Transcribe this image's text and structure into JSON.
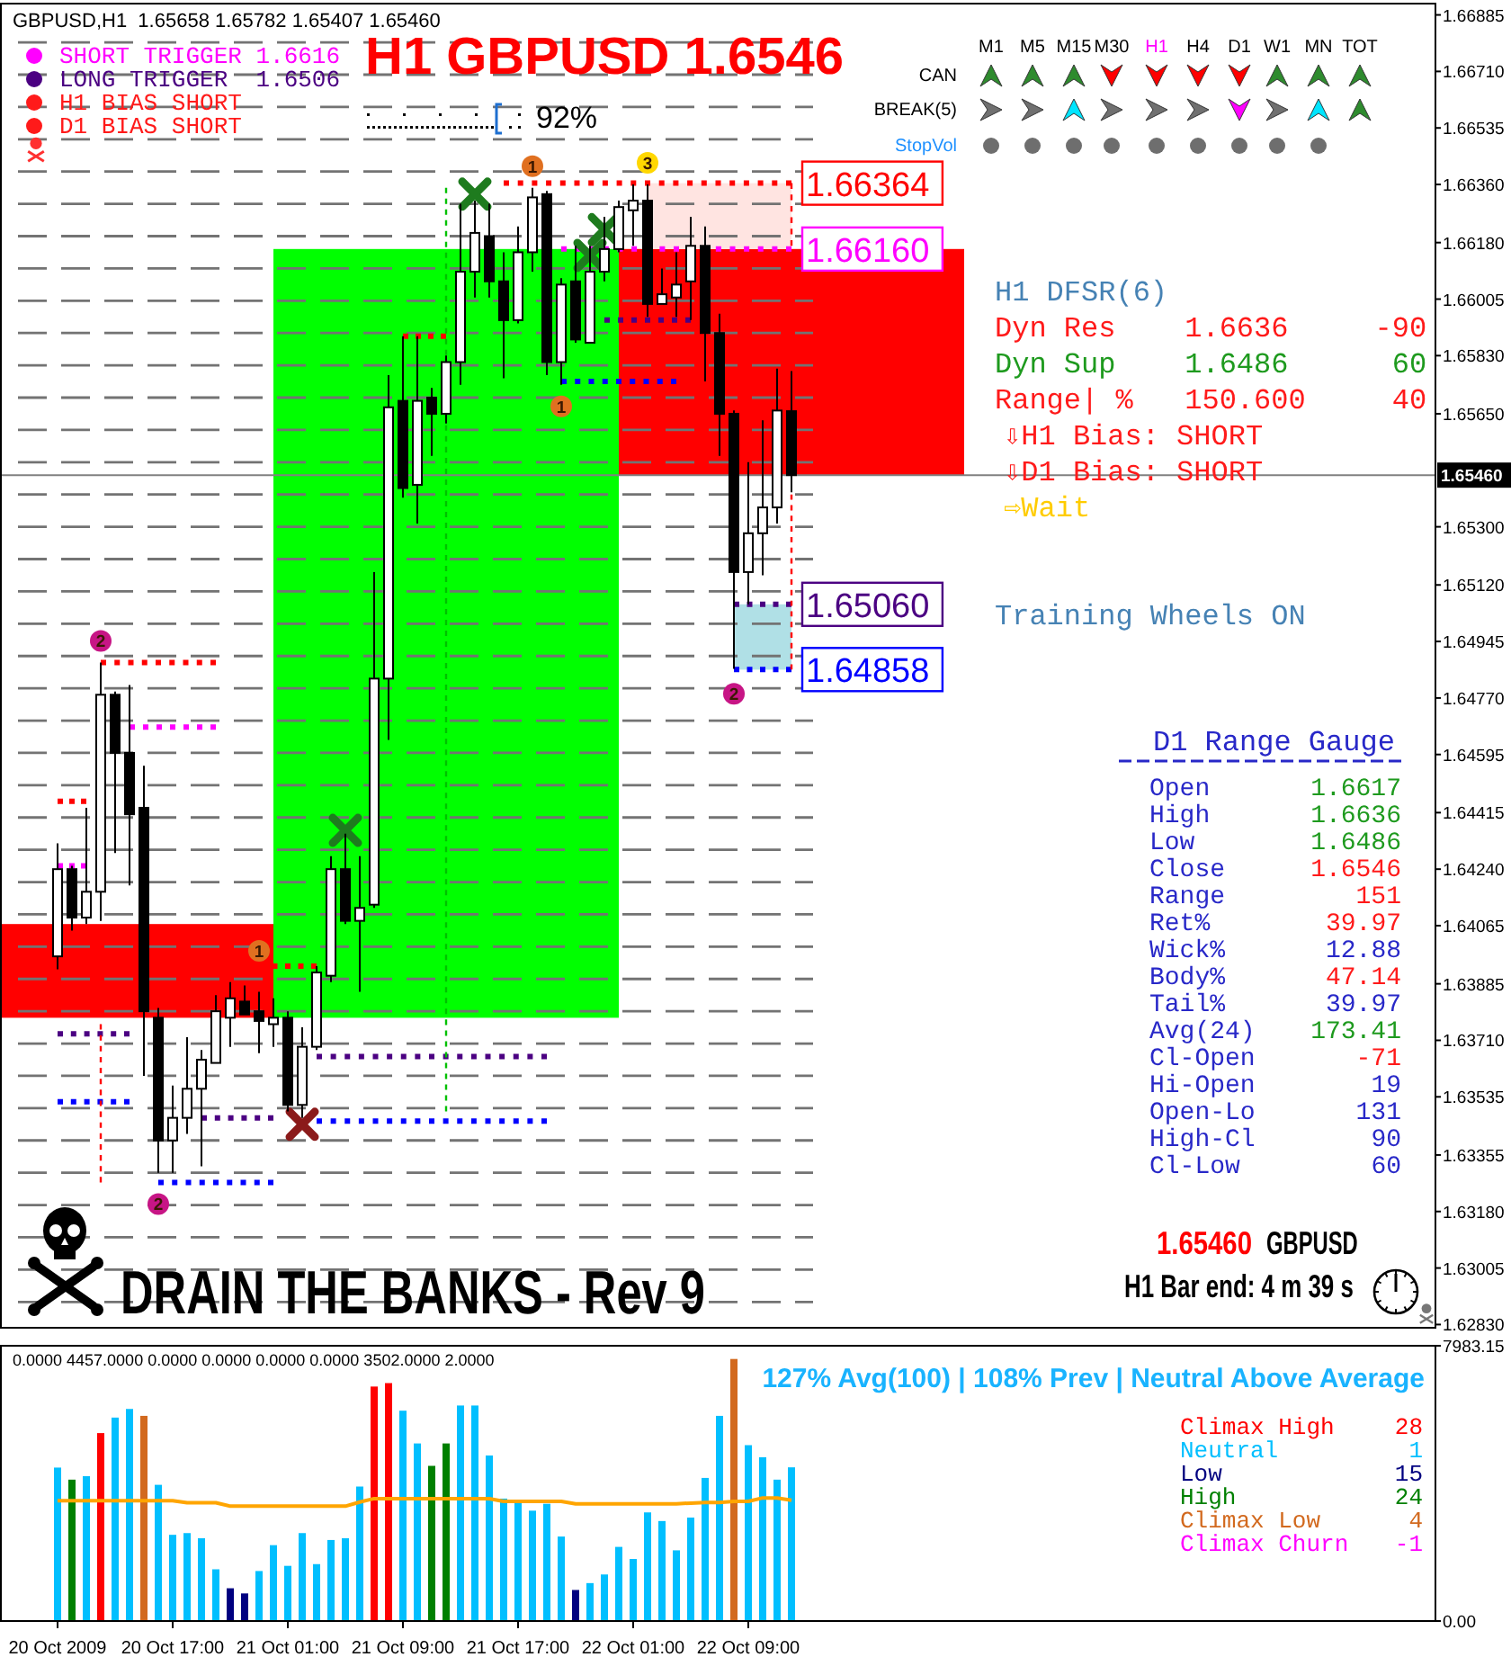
{
  "chart_data": [
    {
      "type": "candlestick",
      "title": "H1 GBPUSD 1.6546",
      "x": [
        "2009-10-20T09:00",
        "2009-10-20T10:00",
        "2009-10-20T11:00",
        "2009-10-20T12:00",
        "2009-10-20T13:00",
        "2009-10-20T14:00",
        "2009-10-20T15:00",
        "2009-10-20T16:00",
        "2009-10-20T17:00",
        "2009-10-20T18:00",
        "2009-10-20T19:00",
        "2009-10-20T20:00",
        "2009-10-20T21:00",
        "2009-10-20T22:00",
        "2009-10-20T23:00",
        "2009-10-21T00:00",
        "2009-10-21T01:00",
        "2009-10-21T02:00",
        "2009-10-21T03:00",
        "2009-10-21T04:00",
        "2009-10-21T05:00",
        "2009-10-21T06:00",
        "2009-10-21T07:00",
        "2009-10-21T08:00",
        "2009-10-21T09:00",
        "2009-10-21T10:00",
        "2009-10-21T11:00",
        "2009-10-21T12:00",
        "2009-10-21T13:00",
        "2009-10-21T14:00",
        "2009-10-21T15:00",
        "2009-10-21T16:00",
        "2009-10-21T17:00",
        "2009-10-21T18:00",
        "2009-10-21T19:00",
        "2009-10-21T20:00",
        "2009-10-21T21:00",
        "2009-10-21T22:00",
        "2009-10-21T23:00",
        "2009-10-22T00:00",
        "2009-10-22T01:00",
        "2009-10-22T02:00",
        "2009-10-22T03:00",
        "2009-10-22T04:00",
        "2009-10-22T05:00",
        "2009-10-22T06:00",
        "2009-10-22T07:00",
        "2009-10-22T08:00",
        "2009-10-22T09:00",
        "2009-10-22T10:00",
        "2009-10-22T11:00",
        "2009-10-22T12:00"
      ],
      "ohlc": [
        [
          1.6397,
          1.6432,
          1.6393,
          1.6424
        ],
        [
          1.6424,
          1.6425,
          1.6405,
          1.6409
        ],
        [
          1.6409,
          1.6443,
          1.6407,
          1.6417
        ],
        [
          1.6417,
          1.6488,
          1.6408,
          1.6478
        ],
        [
          1.6478,
          1.6479,
          1.6429,
          1.646
        ],
        [
          1.646,
          1.6481,
          1.6419,
          1.6441
        ],
        [
          1.6443,
          1.6456,
          1.636,
          1.638
        ],
        [
          1.6378,
          1.6381,
          1.633,
          1.634
        ],
        [
          1.634,
          1.6357,
          1.633,
          1.6347
        ],
        [
          1.6347,
          1.6372,
          1.6342,
          1.6356
        ],
        [
          1.6356,
          1.6368,
          1.6332,
          1.6365
        ],
        [
          1.6364,
          1.6385,
          1.6364,
          1.638
        ],
        [
          1.6378,
          1.6389,
          1.6369,
          1.6384
        ],
        [
          1.6383,
          1.6388,
          1.6379,
          1.6379
        ],
        [
          1.638,
          1.6386,
          1.6367,
          1.6377
        ],
        [
          1.6376,
          1.6384,
          1.6369,
          1.6378
        ],
        [
          1.6378,
          1.638,
          1.6349,
          1.6351
        ],
        [
          1.6351,
          1.6375,
          1.6347,
          1.6369
        ],
        [
          1.6369,
          1.6394,
          1.6368,
          1.6392
        ],
        [
          1.6391,
          1.6428,
          1.6389,
          1.6424
        ],
        [
          1.6424,
          1.6435,
          1.6407,
          1.6408
        ],
        [
          1.6408,
          1.6428,
          1.6386,
          1.6412
        ],
        [
          1.6413,
          1.6516,
          1.6412,
          1.6483
        ],
        [
          1.6483,
          1.6577,
          1.6464,
          1.6567
        ],
        [
          1.6569,
          1.6589,
          1.6539,
          1.6542
        ],
        [
          1.6543,
          1.6589,
          1.6531,
          1.6569
        ],
        [
          1.657,
          1.6573,
          1.6552,
          1.6565
        ],
        [
          1.6565,
          1.6583,
          1.6562,
          1.6581
        ],
        [
          1.6581,
          1.663,
          1.6574,
          1.6609
        ],
        [
          1.6609,
          1.6631,
          1.6601,
          1.6621
        ],
        [
          1.662,
          1.663,
          1.6601,
          1.6606
        ],
        [
          1.6606,
          1.6615,
          1.6576,
          1.6594
        ],
        [
          1.6594,
          1.6623,
          1.6593,
          1.6615
        ],
        [
          1.6615,
          1.6635,
          1.6609,
          1.6632
        ],
        [
          1.6633,
          1.6634,
          1.6577,
          1.6581
        ],
        [
          1.6581,
          1.6607,
          1.6574,
          1.6605
        ],
        [
          1.6606,
          1.6617,
          1.6587,
          1.6588
        ],
        [
          1.6587,
          1.6617,
          1.6587,
          1.6609
        ],
        [
          1.6609,
          1.6626,
          1.6606,
          1.6616
        ],
        [
          1.6616,
          1.6631,
          1.6615,
          1.6629
        ],
        [
          1.6628,
          1.6636,
          1.6617,
          1.6631
        ],
        [
          1.6631,
          1.6636,
          1.6595,
          1.6599
        ],
        [
          1.6599,
          1.661,
          1.6599,
          1.6602
        ],
        [
          1.6601,
          1.6615,
          1.6595,
          1.6605
        ],
        [
          1.6606,
          1.6626,
          1.6594,
          1.6617
        ],
        [
          1.6617,
          1.6623,
          1.6575,
          1.659
        ],
        [
          1.659,
          1.6596,
          1.6552,
          1.6565
        ],
        [
          1.6565,
          1.6566,
          1.6486,
          1.6516
        ],
        [
          1.6516,
          1.655,
          1.6506,
          1.6528
        ],
        [
          1.6528,
          1.6563,
          1.6515,
          1.6536
        ],
        [
          1.6536,
          1.6579,
          1.6531,
          1.6566
        ],
        [
          1.65658,
          1.65782,
          1.65407,
          1.6546
        ]
      ],
      "xlim": [
        "2009-10-20T05:00",
        "2009-10-24T08:45"
      ],
      "ylim": [
        1.6282,
        1.6692
      ],
      "yticks": [
        1.66885,
        {
          "value": 1.6671,
          "label": "1.66710"
        },
        1.66535,
        {
          "value": 1.6636,
          "label": "1.66360"
        },
        {
          "value": 1.6618,
          "label": "1.66180"
        },
        1.66005,
        {
          "value": 1.6583,
          "label": "1.65830"
        },
        {
          "value": 1.6565,
          "label": "1.65650"
        },
        {
          "value": 1.653,
          "label": "1.65300"
        },
        {
          "value": 1.6512,
          "label": "1.65120"
        },
        1.64945,
        {
          "value": 1.6477,
          "label": "1.64770"
        },
        1.64595,
        1.64415,
        {
          "value": 1.6424,
          "label": "1.64240"
        },
        1.64065,
        1.63885,
        {
          "value": 1.6371,
          "label": "1.63710"
        },
        1.63535,
        1.63355,
        {
          "value": 1.6318,
          "label": "1.63180"
        },
        1.63005,
        {
          "value": 1.6283,
          "label": "1.62830"
        }
      ],
      "tick_labels": "y",
      "line_style": "dotted",
      "series": [
        {
          "type": "line",
          "color": "#ff0000",
          "x": [
            "2009-10-20T12:00",
            "2009-10-20T20:00"
          ],
          "values": [
            1.6488,
            1.6488
          ]
        },
        {
          "type": "line",
          "color": "#ff00ff",
          "x": [
            "2009-10-20T14:00",
            "2009-10-20T20:00"
          ],
          "values": [
            1.6468,
            1.6468
          ]
        },
        {
          "type": "line",
          "color": "#ff0000",
          "x": [
            "2009-10-20T09:00",
            "2009-10-20T11:00"
          ],
          "values": [
            1.6445,
            1.6445
          ]
        },
        {
          "type": "line",
          "color": "#ff00ff",
          "x": [
            "2009-10-20T09:00",
            "2009-10-20T11:00"
          ],
          "values": [
            1.6425,
            1.6425
          ]
        },
        {
          "type": "line",
          "color": "#4b0082",
          "x": [
            "2009-10-20T09:00",
            "2009-10-20T14:00"
          ],
          "values": [
            1.6373,
            1.6373
          ]
        },
        {
          "type": "line",
          "color": "#0000ff",
          "x": [
            "2009-10-20T09:00",
            "2009-10-20T14:00"
          ],
          "values": [
            1.6352,
            1.6352
          ]
        },
        {
          "type": "line",
          "color": "#0000ff",
          "x": [
            "2009-10-20T16:00",
            "2009-10-21T00:00"
          ],
          "values": [
            1.6327,
            1.6327
          ]
        },
        {
          "type": "line",
          "color": "#4b0082",
          "x": [
            "2009-10-20T19:00",
            "2009-10-21T00:00"
          ],
          "values": [
            1.6347,
            1.6347
          ]
        },
        {
          "type": "line",
          "color": "#ff0000",
          "x": [
            "2009-10-20T23:00",
            "2009-10-21T03:00"
          ],
          "values": [
            1.6394,
            1.6394
          ]
        },
        {
          "type": "line",
          "color": "#4b0082",
          "x": [
            "2009-10-21T03:00",
            "2009-10-21T19:00"
          ],
          "values": [
            1.6366,
            1.6366
          ]
        },
        {
          "type": "line",
          "color": "#0000ff",
          "x": [
            "2009-10-21T03:00",
            "2009-10-21T19:00"
          ],
          "values": [
            1.6346,
            1.6346
          ]
        },
        {
          "type": "line",
          "color": "#ff0000",
          "x": [
            "2009-10-21T09:00",
            "2009-10-21T12:00"
          ],
          "values": [
            1.6589,
            1.6589
          ]
        },
        {
          "type": "line",
          "color": "#4b0082",
          "x": [
            "2009-10-21T23:00",
            "2009-10-22T05:00"
          ],
          "values": [
            1.6594,
            1.6594
          ]
        },
        {
          "type": "line",
          "color": "#0000ff",
          "x": [
            "2009-10-21T20:00",
            "2009-10-22T04:00"
          ],
          "values": [
            1.6575,
            1.6575
          ]
        },
        {
          "type": "line",
          "color": "#ff0000",
          "x": [
            "2009-10-21T16:00",
            "2009-10-22T12:00"
          ],
          "values": [
            1.66364,
            1.66364
          ]
        },
        {
          "type": "line",
          "color": "#ff00ff",
          "x": [
            "2009-10-21T20:00",
            "2009-10-22T12:00"
          ],
          "values": [
            1.6616,
            1.6616
          ]
        },
        {
          "type": "line",
          "color": "#4b0082",
          "x": [
            "2009-10-22T08:00",
            "2009-10-22T12:00"
          ],
          "values": [
            1.6506,
            1.6506
          ]
        },
        {
          "type": "line",
          "color": "#0000ff",
          "x": [
            "2009-10-22T08:00",
            "2009-10-22T12:00"
          ],
          "values": [
            1.64858,
            1.64858
          ]
        },
        {
          "type": "line",
          "color": "#00c000",
          "line_style": "dashed",
          "x": [
            "2009-10-21T12:00",
            "2009-10-21T12:00"
          ],
          "values": [
            1.6635,
            1.6349
          ]
        },
        {
          "type": "line",
          "color": "#ff0000",
          "line_style": "dashed",
          "x": [
            "2009-10-20T12:00",
            "2009-10-20T12:00"
          ],
          "values": [
            1.6376,
            1.6327
          ]
        },
        {
          "type": "line",
          "color": "#ff0000",
          "line_style": "dashed",
          "x": [
            "2009-10-22T12:00",
            "2009-10-22T12:00"
          ],
          "values": [
            1.66364,
            1.6617
          ]
        },
        {
          "type": "line",
          "color": "#ff0000",
          "line_style": "dashed",
          "x": [
            "2009-10-22T12:00",
            "2009-10-22T12:00"
          ],
          "values": [
            1.654,
            1.64858
          ]
        },
        {
          "type": "scatter",
          "marker": "cross",
          "color": "#1e7b1e",
          "x": [
            "2009-10-21T05:00",
            "2009-10-21T14:00",
            "2009-10-21T22:00",
            "2009-10-21T23:00"
          ],
          "values": [
            1.6436,
            1.6633,
            1.6614,
            1.6622
          ]
        },
        {
          "type": "scatter",
          "marker": "cross",
          "color": "#8b1a1a",
          "x": [
            "2009-10-21T02:00"
          ],
          "values": [
            1.6345
          ]
        }
      ],
      "ref_lines": [
        {
          "axis": "y",
          "value": 1.6546,
          "label": "1.65460",
          "color": "#808080",
          "line_style": "solid"
        },
        {
          "axis": "y",
          "value": 1.629,
          "color": "#737373",
          "line_style": "dashed"
        },
        {
          "axis": "y",
          "value": 1.63,
          "color": "#737373",
          "line_style": "dashed"
        },
        {
          "axis": "y",
          "value": 1.631,
          "color": "#737373",
          "line_style": "dashed"
        },
        {
          "axis": "y",
          "value": 1.632,
          "color": "#737373",
          "line_style": "dashed"
        },
        {
          "axis": "y",
          "value": 1.633,
          "color": "#737373",
          "line_style": "dashed"
        },
        {
          "axis": "y",
          "value": 1.634,
          "color": "#737373",
          "line_style": "dashed"
        },
        {
          "axis": "y",
          "value": 1.635,
          "color": "#737373",
          "line_style": "dashed"
        },
        {
          "axis": "y",
          "value": 1.636,
          "color": "#737373",
          "line_style": "dashed"
        },
        {
          "axis": "y",
          "value": 1.637,
          "color": "#737373",
          "line_style": "dashed"
        },
        {
          "axis": "y",
          "value": 1.638,
          "color": "#737373",
          "line_style": "dashed"
        },
        {
          "axis": "y",
          "value": 1.639,
          "color": "#737373",
          "line_style": "dashed"
        },
        {
          "axis": "y",
          "value": 1.64,
          "color": "#737373",
          "line_style": "dashed"
        },
        {
          "axis": "y",
          "value": 1.641,
          "color": "#737373",
          "line_style": "dashed"
        },
        {
          "axis": "y",
          "value": 1.642,
          "color": "#737373",
          "line_style": "dashed"
        },
        {
          "axis": "y",
          "value": 1.643,
          "color": "#737373",
          "line_style": "dashed"
        },
        {
          "axis": "y",
          "value": 1.644,
          "color": "#737373",
          "line_style": "dashed"
        },
        {
          "axis": "y",
          "value": 1.645,
          "color": "#737373",
          "line_style": "dashed"
        },
        {
          "axis": "y",
          "value": 1.646,
          "color": "#737373",
          "line_style": "dashed"
        },
        {
          "axis": "y",
          "value": 1.647,
          "color": "#737373",
          "line_style": "dashed"
        },
        {
          "axis": "y",
          "value": 1.648,
          "color": "#737373",
          "line_style": "dashed"
        },
        {
          "axis": "y",
          "value": 1.649,
          "color": "#737373",
          "line_style": "dashed"
        },
        {
          "axis": "y",
          "value": 1.65,
          "color": "#737373",
          "line_style": "dashed"
        },
        {
          "axis": "y",
          "value": 1.651,
          "color": "#737373",
          "line_style": "dashed"
        },
        {
          "axis": "y",
          "value": 1.652,
          "color": "#737373",
          "line_style": "dashed"
        },
        {
          "axis": "y",
          "value": 1.653,
          "color": "#737373",
          "line_style": "dashed"
        },
        {
          "axis": "y",
          "value": 1.654,
          "color": "#737373",
          "line_style": "dashed"
        },
        {
          "axis": "y",
          "value": 1.655,
          "color": "#737373",
          "line_style": "dashed"
        },
        {
          "axis": "y",
          "value": 1.656,
          "color": "#737373",
          "line_style": "dashed"
        },
        {
          "axis": "y",
          "value": 1.657,
          "color": "#737373",
          "line_style": "dashed"
        },
        {
          "axis": "y",
          "value": 1.658,
          "color": "#737373",
          "line_style": "dashed"
        },
        {
          "axis": "y",
          "value": 1.659,
          "color": "#737373",
          "line_style": "dashed"
        },
        {
          "axis": "y",
          "value": 1.66,
          "color": "#737373",
          "line_style": "dashed"
        },
        {
          "axis": "y",
          "value": 1.661,
          "color": "#737373",
          "line_style": "dashed"
        },
        {
          "axis": "y",
          "value": 1.662,
          "color": "#737373",
          "line_style": "dashed"
        },
        {
          "axis": "y",
          "value": 1.663,
          "color": "#737373",
          "line_style": "dashed"
        },
        {
          "axis": "y",
          "value": 1.664,
          "color": "#737373",
          "line_style": "dashed"
        },
        {
          "axis": "y",
          "value": 1.665,
          "color": "#737373",
          "line_style": "dashed"
        },
        {
          "axis": "y",
          "value": 1.666,
          "color": "#737373",
          "line_style": "dashed"
        },
        {
          "axis": "y",
          "value": 1.667,
          "color": "#737373",
          "line_style": "dashed"
        },
        {
          "axis": "y",
          "value": 1.668,
          "color": "#737373",
          "line_style": "dashed"
        }
      ],
      "annotations": [
        "GBPUSD,H1  1.65658 1.65782 1.65407 1.65460",
        "SHORT TRIGGER 1.6616",
        "LONG TRIGGER  1.6506",
        "H1 BIAS SHORT",
        "D1 BIAS SHORT",
        "92%",
        "M1",
        "M5",
        "M15",
        "M30",
        "H1",
        "H4",
        "D1",
        "W1",
        "MN",
        "TOT",
        "CAN",
        "BREAK(5)",
        "StopVol",
        "H1 DFSR(6)",
        "Dyn Res    1.6636     -90",
        "Dyn Sup    1.6486      60",
        "Range| %   150.600     40",
        "⇩H1 Bias: SHORT",
        "⇩D1 Bias: SHORT",
        "⇨Wait",
        "Training Wheels ON",
        "D1 Range Gauge",
        "Open",
        "1.6617",
        "High",
        "1.6636",
        "Low",
        "1.6486",
        "Close",
        "1.6546",
        "Range",
        "151",
        "Ret%",
        "39.97",
        "Wick%",
        "12.88",
        "Body%",
        "47.14",
        "Tail%",
        "39.97",
        "Avg(24)",
        "173.41",
        "Cl-Open",
        "-71",
        "Hi-Open",
        "19",
        "Open-Lo",
        "131",
        "High-Cl",
        "90",
        "Cl-Low",
        "60",
        "1.65460",
        "GBPUSD",
        "H1 Bar end: 4 m 39 s",
        "DRAIN THE BANKS - Rev 9",
        {
          "text": "2",
          "x": "2009-10-20T12:00",
          "y": 1.6488
        },
        {
          "text": "2",
          "x": "2009-10-20T16:00",
          "y": 1.6327
        },
        {
          "text": "1",
          "x": "2009-10-20T23:00",
          "y": 1.6392
        },
        {
          "text": "1",
          "x": "2009-10-21T18:00",
          "y": 1.6635
        },
        {
          "text": "1",
          "x": "2009-10-21T20:00",
          "y": 1.6574
        },
        {
          "text": "3",
          "x": "2009-10-22T02:00",
          "y": 1.6636
        },
        {
          "text": "2",
          "x": "2009-10-22T08:00",
          "y": 1.6485
        },
        {
          "text": "1.66364",
          "x": "2009-10-22T12:00",
          "y": 1.66364
        },
        {
          "text": "1.66160",
          "x": "2009-10-22T12:00",
          "y": 1.6616
        },
        {
          "text": "1.65060",
          "x": "2009-10-22T12:00",
          "y": 1.6506
        },
        {
          "text": "1.64858",
          "x": "2009-10-22T12:00",
          "y": 1.64858
        }
      ]
    },
    {
      "type": "bar",
      "title": "127% Avg(100) | 108% Prev | Neutral Above Average",
      "x": [
        "2009-10-20T09:00",
        "2009-10-20T10:00",
        "2009-10-20T11:00",
        "2009-10-20T12:00",
        "2009-10-20T13:00",
        "2009-10-20T14:00",
        "2009-10-20T15:00",
        "2009-10-20T16:00",
        "2009-10-20T17:00",
        "2009-10-20T18:00",
        "2009-10-20T19:00",
        "2009-10-20T20:00",
        "2009-10-20T21:00",
        "2009-10-20T22:00",
        "2009-10-20T23:00",
        "2009-10-21T00:00",
        "2009-10-21T01:00",
        "2009-10-21T02:00",
        "2009-10-21T03:00",
        "2009-10-21T04:00",
        "2009-10-21T05:00",
        "2009-10-21T06:00",
        "2009-10-21T07:00",
        "2009-10-21T08:00",
        "2009-10-21T09:00",
        "2009-10-21T10:00",
        "2009-10-21T11:00",
        "2009-10-21T12:00",
        "2009-10-21T13:00",
        "2009-10-21T14:00",
        "2009-10-21T15:00",
        "2009-10-21T16:00",
        "2009-10-21T17:00",
        "2009-10-21T18:00",
        "2009-10-21T19:00",
        "2009-10-21T20:00",
        "2009-10-21T21:00",
        "2009-10-21T22:00",
        "2009-10-21T23:00",
        "2009-10-22T00:00",
        "2009-10-22T01:00",
        "2009-10-22T02:00",
        "2009-10-22T03:00",
        "2009-10-22T04:00",
        "2009-10-22T05:00",
        "2009-10-22T06:00",
        "2009-10-22T07:00",
        "2009-10-22T08:00",
        "2009-10-22T09:00",
        "2009-10-22T10:00",
        "2009-10-22T11:00",
        "2009-10-22T12:00"
      ],
      "xlim": [
        "2009-10-20T05:00",
        "2009-10-24T08:45"
      ],
      "xticks": [
        {
          "value": "2009-10-20T09:00",
          "label": "20 Oct 2009"
        },
        {
          "value": "2009-10-20T17:00",
          "label": "20 Oct 17:00"
        },
        {
          "value": "2009-10-21T01:00",
          "label": "21 Oct 01:00"
        },
        {
          "value": "2009-10-21T09:00",
          "label": "21 Oct 09:00"
        },
        {
          "value": "2009-10-21T17:00",
          "label": "21 Oct 17:00"
        },
        {
          "value": "2009-10-22T01:00",
          "label": "22 Oct 01:00"
        },
        {
          "value": "2009-10-22T09:00",
          "label": "22 Oct 09:00"
        }
      ],
      "ylim": [
        0,
        7983.15
      ],
      "yticks": [
        {
          "value": 0,
          "label": "0.00"
        },
        7983.15
      ],
      "legend": "right",
      "series": [
        {
          "name": "Climax High",
          "type": "bar",
          "color": "#ff0000",
          "x": [
            "2009-10-20T12:00",
            "2009-10-21T07:00",
            "2009-10-21T08:00"
          ],
          "values": [
            5450,
            6800,
            6900
          ]
        },
        {
          "name": "Neutral",
          "type": "bar",
          "color": "#00bfff",
          "values": [
            4450,
            null,
            4200,
            null,
            5900,
            6150,
            null,
            3950,
            2500,
            2550,
            2400,
            1500,
            null,
            null,
            1450,
            2200,
            1600,
            2550,
            1650,
            2350,
            2400,
            3900,
            null,
            null,
            6100,
            5150,
            null,
            null,
            6250,
            6250,
            4800,
            3550,
            3500,
            3200,
            3400,
            2450,
            null,
            1100,
            1350,
            2150,
            1800,
            3150,
            2900,
            2050,
            3000,
            4150,
            5950,
            null,
            5100,
            4750,
            4100,
            4457
          ]
        },
        {
          "name": "Low",
          "type": "bar",
          "color": "#000080",
          "x": [
            "2009-10-20T21:00",
            "2009-10-20T22:00",
            "2009-10-21T21:00"
          ],
          "values": [
            950,
            800,
            900
          ]
        },
        {
          "name": "High",
          "type": "bar",
          "color": "#008000",
          "x": [
            "2009-10-20T10:00",
            "2009-10-21T11:00",
            "2009-10-21T12:00"
          ],
          "values": [
            4100,
            4500,
            5150
          ]
        },
        {
          "name": "Climax Low",
          "type": "bar",
          "color": "#d2691e",
          "x": [
            "2009-10-20T15:00",
            "2009-10-22T08:00"
          ],
          "values": [
            5950,
            7600
          ]
        },
        {
          "type": "line",
          "color": "#ffa500",
          "values": [
            3490,
            3490,
            3490,
            3490,
            3490,
            3490,
            3490,
            3490,
            3490,
            3430,
            3430,
            3430,
            3330,
            3330,
            3330,
            3330,
            3330,
            3330,
            3330,
            3330,
            3330,
            3450,
            3550,
            3550,
            3550,
            3550,
            3550,
            3550,
            3550,
            3550,
            3550,
            3470,
            3470,
            3470,
            3470,
            3470,
            3400,
            3400,
            3400,
            3400,
            3400,
            3400,
            3400,
            3400,
            3420,
            3440,
            3440,
            3470,
            3470,
            3570,
            3570,
            3502
          ]
        }
      ],
      "annotations": [
        "0.0000 4457.0000 0.0000 0.0000 0.0000 0.0000 3502.0000 2.0000",
        "28",
        "1",
        "15",
        "24",
        "4",
        "Climax Churn",
        "-1"
      ]
    }
  ]
}
